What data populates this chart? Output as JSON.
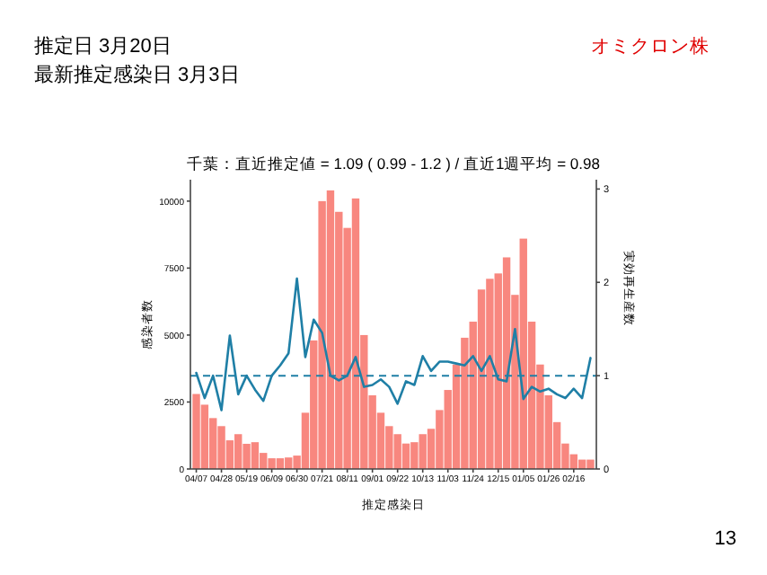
{
  "chart_data": {
    "type": "bar",
    "title": "千葉：直近推定値 = 1.09 ( 0.99 - 1.2 ) / 直近1週平均 = 0.98",
    "xlabel": "推定感染日",
    "ylabel": "感染者数",
    "y2label": "実効再生産数",
    "annotations": [
      "推定日  3月20日",
      "最新推定感染日  3月3日",
      "オミクロン株",
      "13"
    ],
    "categories": [
      "04/07",
      null,
      null,
      "04/28",
      null,
      null,
      "05/19",
      null,
      null,
      "06/09",
      null,
      null,
      "06/30",
      null,
      null,
      "07/21",
      null,
      null,
      "08/11",
      null,
      null,
      "09/01",
      null,
      null,
      "09/22",
      null,
      null,
      "10/13",
      null,
      null,
      "11/03",
      null,
      null,
      "11/24",
      null,
      null,
      "12/15",
      null,
      null,
      "01/05",
      null,
      null,
      "01/26",
      null,
      null,
      "02/16",
      null,
      null
    ],
    "series": [
      {
        "color": "#f8877f",
        "values": [
          2800,
          2400,
          1900,
          1600,
          1070,
          1300,
          940,
          1000,
          600,
          400,
          400,
          430,
          500,
          2100,
          4800,
          10000,
          10400,
          9600,
          9000,
          10100,
          5000,
          2750,
          2100,
          1600,
          1300,
          950,
          1000,
          1300,
          1500,
          2200,
          2950,
          3900,
          4900,
          5500,
          6700,
          7100,
          7300,
          7900,
          6500,
          8600,
          5500,
          3900,
          2750,
          1750,
          950,
          550,
          350,
          350
        ]
      },
      {
        "type": "line",
        "axis": "y2",
        "color": "#1f7fa6",
        "values": [
          1.03,
          0.76,
          1.0,
          0.63,
          1.43,
          0.8,
          1.0,
          0.85,
          0.73,
          1.0,
          1.11,
          1.24,
          2.04,
          1.2,
          1.6,
          1.46,
          1.0,
          0.95,
          1.0,
          1.2,
          0.88,
          0.9,
          0.96,
          0.88,
          0.7,
          0.94,
          0.9,
          1.21,
          1.05,
          1.15,
          1.15,
          1.13,
          1.11,
          1.21,
          1.05,
          1.21,
          0.96,
          0.94,
          1.5,
          0.75,
          0.88,
          0.83,
          0.86,
          0.8,
          0.76,
          0.86,
          0.76,
          1.19
        ]
      }
    ],
    "ylim": [
      0,
      10800
    ],
    "yticks": [
      0,
      2500,
      5000,
      7500,
      10000
    ],
    "y2lim": [
      0,
      3.1
    ],
    "y2ticks": [
      0,
      1,
      2,
      3
    ],
    "ref_lines": [
      {
        "axis": "y2",
        "value": 1,
        "color": "#1f7fa6",
        "line_style": "dashed"
      }
    ]
  }
}
